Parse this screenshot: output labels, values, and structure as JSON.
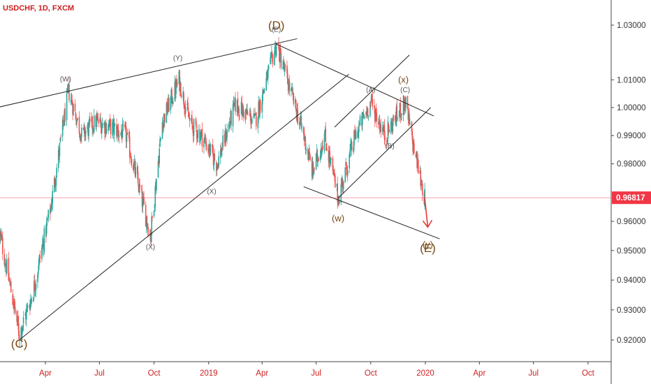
{
  "header": {
    "symbol": "USDCHF, 1D, FXCM"
  },
  "colors": {
    "up": "#26a69a",
    "down": "#ef5350",
    "wave_label": "#7a4a14",
    "current_price": "#f23645",
    "trendline": "#222222",
    "arrow": "#e53935"
  },
  "chart_data": {
    "type": "candlestick",
    "instrument": "USDCHF",
    "timeframe": "1D",
    "source": "FXCM",
    "current_price": 0.96817,
    "y_ticks": [
      1.03,
      1.01,
      1.0,
      0.99,
      0.98,
      0.97,
      0.96,
      0.95,
      0.94,
      0.93,
      0.92
    ],
    "y_tick_labels": [
      "1.03000",
      "1.01000",
      "1.00000",
      "0.99000",
      "0.98000",
      "0.96817",
      "0.96000",
      "0.95000",
      "0.94000",
      "0.93000",
      "0.92000"
    ],
    "x_labels": [
      "Apr",
      "Jul",
      "Oct",
      "2019",
      "Apr",
      "Jul",
      "Oct",
      "2020",
      "Apr",
      "Jul",
      "Oct"
    ],
    "x_label_dates": [
      "2018-04-01",
      "2018-07-01",
      "2018-10-01",
      "2019-01-01",
      "2019-04-01",
      "2019-07-01",
      "2019-10-01",
      "2020-01-01",
      "2020-04-01",
      "2020-07-01",
      "2020-10-01"
    ],
    "price_path": [
      [
        "2018-01-15",
        0.955
      ],
      [
        "2018-02-16",
        0.922
      ],
      [
        "2018-03-10",
        0.935
      ],
      [
        "2018-04-10",
        0.965
      ],
      [
        "2018-05-10",
        1.006
      ],
      [
        "2018-06-01",
        0.99
      ],
      [
        "2018-06-25",
        0.995
      ],
      [
        "2018-07-20",
        0.993
      ],
      [
        "2018-08-15",
        0.99
      ],
      [
        "2018-09-25",
        0.955
      ],
      [
        "2018-10-15",
        0.995
      ],
      [
        "2018-11-12",
        1.01
      ],
      [
        "2018-12-01",
        0.994
      ],
      [
        "2018-12-20",
        0.99
      ],
      [
        "2019-01-15",
        0.98
      ],
      [
        "2019-02-15",
        1.001
      ],
      [
        "2019-03-20",
        0.995
      ],
      [
        "2019-04-25",
        1.023
      ],
      [
        "2019-05-20",
        1.005
      ],
      [
        "2019-06-10",
        0.99
      ],
      [
        "2019-06-25",
        0.977
      ],
      [
        "2019-07-15",
        0.99
      ],
      [
        "2019-08-07",
        0.968
      ],
      [
        "2019-09-05",
        0.99
      ],
      [
        "2019-10-01",
        1.002
      ],
      [
        "2019-10-25",
        0.99
      ],
      [
        "2019-11-28",
        1.002
      ],
      [
        "2019-12-10",
        0.988
      ],
      [
        "2019-12-31",
        0.968
      ]
    ],
    "trendlines": [
      {
        "name": "upper-wedge-line",
        "from": [
          "2017-12-20",
          0.999
        ],
        "to": [
          "2019-05-30",
          1.025
        ]
      },
      {
        "name": "lower-wedge-line",
        "from": [
          "2018-02-16",
          0.92
        ],
        "to": [
          "2019-08-25",
          1.012
        ]
      },
      {
        "name": "d-to-y-line",
        "from": [
          "2019-04-25",
          1.023
        ],
        "to": [
          "2020-01-15",
          0.997
        ]
      },
      {
        "name": "w-channel-lower-line",
        "from": [
          "2019-06-10",
          0.972
        ],
        "to": [
          "2020-01-25",
          0.954
        ]
      },
      {
        "name": "x-channel-upper-line",
        "from": [
          "2019-08-01",
          0.993
        ],
        "to": [
          "2019-12-05",
          1.019
        ]
      },
      {
        "name": "x-channel-lower-line",
        "from": [
          "2019-08-07",
          0.968
        ],
        "to": [
          "2020-01-10",
          1.0
        ]
      }
    ],
    "arrow": {
      "from": [
        "2019-12-31",
        0.968
      ],
      "to": [
        "2020-01-05",
        0.958
      ]
    },
    "annotations": [
      {
        "text": "(C)",
        "date": "2018-02-16",
        "price": 0.9175,
        "size": "big"
      },
      {
        "text": "(D)",
        "date": "2019-04-25",
        "price": 1.0285,
        "size": "big"
      },
      {
        "text": "(E)",
        "date": "2020-01-05",
        "price": 0.9495,
        "size": "big"
      },
      {
        "text": "(w)",
        "date": "2019-08-07",
        "price": 0.96,
        "size": "mid"
      },
      {
        "text": "(x)",
        "date": "2019-11-25",
        "price": 1.009,
        "size": "mid"
      },
      {
        "text": "(y)",
        "date": "2020-01-05",
        "price": 0.951,
        "size": "mid"
      },
      {
        "text": "(W)",
        "date": "2018-05-05",
        "price": 1.0095,
        "size": "small"
      },
      {
        "text": "(Y)",
        "date": "2018-11-10",
        "price": 1.017,
        "size": "small"
      },
      {
        "text": "(X)",
        "date": "2018-09-25",
        "price": 0.9505,
        "size": "small"
      },
      {
        "text": "(X)",
        "date": "2019-01-06",
        "price": 0.9695,
        "size": "small"
      },
      {
        "text": "(A)",
        "date": "2019-10-01",
        "price": 1.0055,
        "size": "small"
      },
      {
        "text": "(B)",
        "date": "2019-11-02",
        "price": 0.9855,
        "size": "small"
      },
      {
        "text": "(C)",
        "date": "2019-11-28",
        "price": 1.0055,
        "size": "small"
      },
      {
        "text": "(E)",
        "date": "2019-04-25",
        "price": 1.0275,
        "size": "small"
      }
    ]
  }
}
